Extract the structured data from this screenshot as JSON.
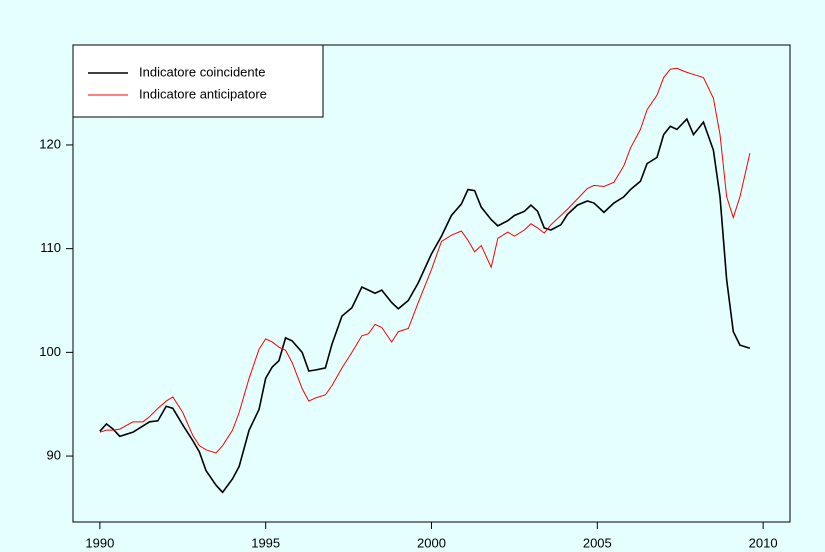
{
  "chart_data": {
    "type": "line",
    "x": [
      1990.0,
      1990.2,
      1990.4,
      1990.6,
      1991.0,
      1991.3,
      1991.5,
      1991.75,
      1992.0,
      1992.2,
      1992.5,
      1992.8,
      1993.0,
      1993.2,
      1993.5,
      1993.7,
      1994.0,
      1994.2,
      1994.5,
      1994.8,
      1995.0,
      1995.2,
      1995.4,
      1995.6,
      1995.8,
      1996.1,
      1996.3,
      1996.5,
      1996.8,
      1997.0,
      1997.3,
      1997.6,
      1997.9,
      1998.1,
      1998.3,
      1998.5,
      1998.8,
      1999.0,
      1999.3,
      1999.6,
      2000.0,
      2000.3,
      2000.6,
      2000.9,
      2001.1,
      2001.3,
      2001.5,
      2001.8,
      2002.0,
      2002.3,
      2002.5,
      2002.8,
      2003.0,
      2003.2,
      2003.4,
      2003.6,
      2003.9,
      2004.1,
      2004.4,
      2004.7,
      2004.9,
      2005.2,
      2005.5,
      2005.8,
      2006.0,
      2006.3,
      2006.5,
      2006.8,
      2007.0,
      2007.2,
      2007.4,
      2007.7,
      2007.9,
      2008.2,
      2008.5,
      2008.7,
      2008.9,
      2009.1,
      2009.3,
      2009.6
    ],
    "series": [
      {
        "name": "Indicatore coincidente",
        "color": "#000000",
        "values": [
          92.4,
          93.1,
          92.6,
          91.9,
          92.3,
          92.9,
          93.3,
          93.4,
          94.8,
          94.6,
          93.0,
          91.5,
          90.4,
          88.6,
          87.2,
          86.5,
          87.8,
          89.0,
          92.5,
          94.5,
          97.5,
          98.6,
          99.2,
          101.4,
          101.1,
          100.0,
          98.2,
          98.3,
          98.5,
          100.8,
          103.5,
          104.3,
          106.3,
          106.0,
          105.7,
          106.0,
          104.8,
          104.2,
          105.0,
          106.7,
          109.5,
          111.2,
          113.2,
          114.3,
          115.7,
          115.6,
          114.0,
          112.8,
          112.2,
          112.7,
          113.2,
          113.6,
          114.2,
          113.6,
          112.0,
          111.8,
          112.3,
          113.3,
          114.2,
          114.6,
          114.4,
          113.5,
          114.4,
          115.0,
          115.7,
          116.5,
          118.2,
          118.8,
          121.0,
          121.8,
          121.5,
          122.5,
          121.0,
          122.2,
          119.5,
          115.0,
          107.0,
          102.0,
          100.7,
          100.4
        ]
      },
      {
        "name": "Indicatore anticipatore",
        "color": "#ff0000",
        "values": [
          92.3,
          92.5,
          92.5,
          92.6,
          93.3,
          93.3,
          93.8,
          94.6,
          95.3,
          95.7,
          94.2,
          92.0,
          91.0,
          90.6,
          90.3,
          91.0,
          92.5,
          94.2,
          97.5,
          100.3,
          101.3,
          101.0,
          100.5,
          100.2,
          99.0,
          96.5,
          95.3,
          95.6,
          95.9,
          96.8,
          98.5,
          100.0,
          101.6,
          101.8,
          102.7,
          102.4,
          101.0,
          102.0,
          102.3,
          104.8,
          108.0,
          110.7,
          111.3,
          111.7,
          110.8,
          109.7,
          110.3,
          108.2,
          111.0,
          111.6,
          111.2,
          111.8,
          112.4,
          112.0,
          111.5,
          112.3,
          113.2,
          113.8,
          114.8,
          115.8,
          116.1,
          116.0,
          116.4,
          118.0,
          119.7,
          121.5,
          123.4,
          124.8,
          126.5,
          127.3,
          127.4,
          127.0,
          126.8,
          126.5,
          124.5,
          121.0,
          115.0,
          113.0,
          115.0,
          119.2
        ]
      }
    ],
    "xlim": [
      1989.19,
      2010.81
    ],
    "xticks": [
      1990,
      1995,
      2000,
      2005,
      2010
    ],
    "ylim": [
      83.64,
      129.64
    ],
    "yticks": [
      90,
      100,
      110,
      120
    ],
    "legend": "top-left"
  }
}
